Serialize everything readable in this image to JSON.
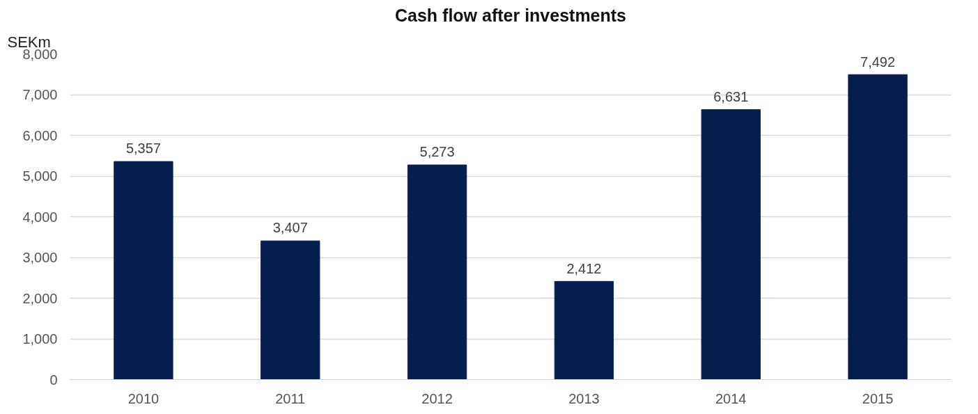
{
  "chart_data": {
    "type": "bar",
    "title": "Cash flow after investments",
    "ylabel": "SEKm",
    "categories": [
      "2010",
      "2011",
      "2012",
      "2013",
      "2014",
      "2015"
    ],
    "values": [
      5357,
      3407,
      5273,
      2412,
      6631,
      7492
    ],
    "color": "#061f4f",
    "ylim": [
      0,
      8000
    ],
    "yticks": [
      {
        "value": 0,
        "label": "0"
      },
      {
        "value": 1000,
        "label": "1,000"
      },
      {
        "value": 2000,
        "label": "2,000"
      },
      {
        "value": 3000,
        "label": "3,000"
      },
      {
        "value": 4000,
        "label": "4,000"
      },
      {
        "value": 5000,
        "label": "5,000"
      },
      {
        "value": 6000,
        "label": "6,000"
      },
      {
        "value": 7000,
        "label": "7,000"
      },
      {
        "value": 8000,
        "label": "8,000"
      }
    ],
    "value_labels": [
      "5,357",
      "3,407",
      "5,273",
      "2,412",
      "6,631",
      "7,492"
    ],
    "grid": "y"
  }
}
